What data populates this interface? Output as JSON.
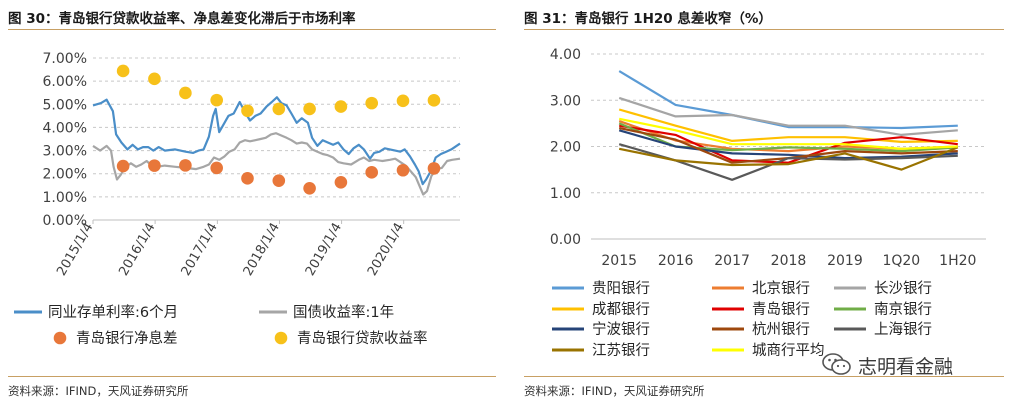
{
  "left": {
    "title": "图 30：青岛银行贷款收益率、净息差变化滞后于市场利率",
    "source": "资料来源：IFIND，天风证券研究所"
  },
  "right": {
    "title": "图 31：青岛银行 1H20 息差收窄（%）",
    "source": "资料来源：IFIND，天风证券研究所"
  },
  "watermark": {
    "text": "志明看金融",
    "icon": "wechat-icon"
  },
  "chart_data": [
    {
      "type": "line",
      "x_ticks": [
        "2015/1/4",
        "2016/1/4",
        "2017/1/4",
        "2018/1/4",
        "2019/1/4",
        "2020/1/4"
      ],
      "x_range": [
        "2015/1/4",
        "2020/11/30"
      ],
      "y_ticks": [
        "0.00%",
        "1.00%",
        "2.00%",
        "3.00%",
        "4.00%",
        "5.00%",
        "6.00%",
        "7.00%"
      ],
      "ylim": [
        0,
        7
      ],
      "grid": "horizontal-dashed",
      "legend_position": "bottom",
      "series": [
        {
          "name": "同业存单利率:6个月",
          "kind": "line",
          "color": "#4a8ec8",
          "points": [
            [
              "2015/1/4",
              4.95
            ],
            [
              "2015/2/20",
              5.05
            ],
            [
              "2015/3/25",
              5.2
            ],
            [
              "2015/5/1",
              4.7
            ],
            [
              "2015/5/20",
              3.7
            ],
            [
              "2015/6/20",
              3.35
            ],
            [
              "2015/7/25",
              3.05
            ],
            [
              "2015/8/25",
              3.25
            ],
            [
              "2015/9/25",
              3.05
            ],
            [
              "2015/10/25",
              3.15
            ],
            [
              "2015/11/25",
              3.15
            ],
            [
              "2015/12/25",
              3.0
            ],
            [
              "2016/1/25",
              3.15
            ],
            [
              "2016/3/1",
              3.0
            ],
            [
              "2016/5/1",
              3.05
            ],
            [
              "2016/7/1",
              2.95
            ],
            [
              "2016/8/15",
              2.9
            ],
            [
              "2016/9/15",
              3.0
            ],
            [
              "2016/10/15",
              3.05
            ],
            [
              "2016/11/15",
              3.6
            ],
            [
              "2016/12/10",
              4.5
            ],
            [
              "2016/12/25",
              4.8
            ],
            [
              "2017/1/15",
              3.8
            ],
            [
              "2017/2/15",
              4.2
            ],
            [
              "2017/3/10",
              4.5
            ],
            [
              "2017/4/10",
              4.6
            ],
            [
              "2017/5/15",
              5.1
            ],
            [
              "2017/6/20",
              4.6
            ],
            [
              "2017/7/15",
              4.3
            ],
            [
              "2017/8/15",
              4.5
            ],
            [
              "2017/9/15",
              4.6
            ],
            [
              "2017/10/20",
              4.9
            ],
            [
              "2017/11/20",
              5.1
            ],
            [
              "2017/12/20",
              5.3
            ],
            [
              "2018/1/15",
              5.05
            ],
            [
              "2018/2/15",
              4.95
            ],
            [
              "2018/3/15",
              4.6
            ],
            [
              "2018/4/15",
              4.2
            ],
            [
              "2018/5/15",
              4.4
            ],
            [
              "2018/6/20",
              4.2
            ],
            [
              "2018/7/15",
              3.55
            ],
            [
              "2018/8/15",
              3.2
            ],
            [
              "2018/9/15",
              3.45
            ],
            [
              "2018/10/15",
              3.35
            ],
            [
              "2018/11/15",
              3.25
            ],
            [
              "2018/12/15",
              3.35
            ],
            [
              "2019/1/15",
              3.05
            ],
            [
              "2019/2/15",
              2.85
            ],
            [
              "2019/3/15",
              3.1
            ],
            [
              "2019/4/15",
              3.25
            ],
            [
              "2019/5/15",
              3.05
            ],
            [
              "2019/6/20",
              2.65
            ],
            [
              "2019/7/15",
              2.9
            ],
            [
              "2019/8/15",
              2.95
            ],
            [
              "2019/9/15",
              3.1
            ],
            [
              "2019/10/15",
              3.05
            ],
            [
              "2019/11/15",
              3.0
            ],
            [
              "2019/12/15",
              2.95
            ],
            [
              "2020/1/10",
              3.05
            ],
            [
              "2020/2/10",
              2.75
            ],
            [
              "2020/3/10",
              2.4
            ],
            [
              "2020/4/1",
              2.1
            ],
            [
              "2020/4/25",
              1.55
            ],
            [
              "2020/5/15",
              1.75
            ],
            [
              "2020/6/10",
              2.1
            ],
            [
              "2020/7/10",
              2.7
            ],
            [
              "2020/8/10",
              2.85
            ],
            [
              "2020/9/10",
              2.95
            ],
            [
              "2020/10/10",
              3.05
            ],
            [
              "2020/11/30",
              3.3
            ]
          ]
        },
        {
          "name": "国债收益率:1年",
          "kind": "line",
          "color": "#a6a6a6",
          "points": [
            [
              "2015/1/4",
              3.2
            ],
            [
              "2015/2/15",
              3.0
            ],
            [
              "2015/3/25",
              3.2
            ],
            [
              "2015/4/20",
              3.0
            ],
            [
              "2015/5/5",
              2.3
            ],
            [
              "2015/5/25",
              1.75
            ],
            [
              "2015/6/15",
              1.95
            ],
            [
              "2015/7/15",
              2.3
            ],
            [
              "2015/8/15",
              2.45
            ],
            [
              "2015/9/15",
              2.3
            ],
            [
              "2015/10/15",
              2.4
            ],
            [
              "2015/11/15",
              2.55
            ],
            [
              "2015/12/15",
              2.35
            ],
            [
              "2016/1/15",
              2.3
            ],
            [
              "2016/3/1",
              2.35
            ],
            [
              "2016/5/1",
              2.3
            ],
            [
              "2016/7/1",
              2.25
            ],
            [
              "2016/9/1",
              2.2
            ],
            [
              "2016/10/15",
              2.3
            ],
            [
              "2016/11/15",
              2.4
            ],
            [
              "2016/12/15",
              2.7
            ],
            [
              "2017/1/15",
              2.6
            ],
            [
              "2017/2/15",
              2.75
            ],
            [
              "2017/3/15",
              2.95
            ],
            [
              "2017/4/15",
              3.05
            ],
            [
              "2017/5/15",
              3.35
            ],
            [
              "2017/6/15",
              3.45
            ],
            [
              "2017/7/15",
              3.4
            ],
            [
              "2017/8/15",
              3.45
            ],
            [
              "2017/9/15",
              3.5
            ],
            [
              "2017/10/15",
              3.55
            ],
            [
              "2017/11/15",
              3.7
            ],
            [
              "2017/12/15",
              3.75
            ],
            [
              "2018/1/15",
              3.65
            ],
            [
              "2018/2/15",
              3.55
            ],
            [
              "2018/3/15",
              3.45
            ],
            [
              "2018/4/15",
              3.3
            ],
            [
              "2018/5/15",
              3.35
            ],
            [
              "2018/6/15",
              3.3
            ],
            [
              "2018/7/15",
              3.05
            ],
            [
              "2018/8/15",
              2.95
            ],
            [
              "2018/9/15",
              2.85
            ],
            [
              "2018/10/15",
              2.8
            ],
            [
              "2018/11/15",
              2.7
            ],
            [
              "2018/12/15",
              2.5
            ],
            [
              "2019/1/15",
              2.45
            ],
            [
              "2019/3/1",
              2.4
            ],
            [
              "2019/4/15",
              2.6
            ],
            [
              "2019/5/15",
              2.7
            ],
            [
              "2019/6/15",
              2.55
            ],
            [
              "2019/7/15",
              2.6
            ],
            [
              "2019/9/1",
              2.55
            ],
            [
              "2019/10/15",
              2.6
            ],
            [
              "2019/11/15",
              2.65
            ],
            [
              "2019/12/15",
              2.5
            ],
            [
              "2020/1/15",
              2.35
            ],
            [
              "2020/2/15",
              2.1
            ],
            [
              "2020/3/15",
              1.85
            ],
            [
              "2020/4/10",
              1.4
            ],
            [
              "2020/4/28",
              1.1
            ],
            [
              "2020/5/20",
              1.25
            ],
            [
              "2020/6/15",
              1.9
            ],
            [
              "2020/7/15",
              2.2
            ],
            [
              "2020/8/15",
              2.25
            ],
            [
              "2020/9/15",
              2.55
            ],
            [
              "2020/10/15",
              2.6
            ],
            [
              "2020/11/30",
              2.65
            ]
          ]
        },
        {
          "name": "青岛银行净息差",
          "kind": "dot",
          "color": "#e8773a",
          "points": [
            [
              "2015/6/30",
              2.33
            ],
            [
              "2015/12/31",
              2.35
            ],
            [
              "2016/6/30",
              2.36
            ],
            [
              "2016/12/31",
              2.25
            ],
            [
              "2017/6/30",
              1.8
            ],
            [
              "2017/12/31",
              1.7
            ],
            [
              "2018/6/30",
              1.37
            ],
            [
              "2018/12/31",
              1.63
            ],
            [
              "2019/6/30",
              2.06
            ],
            [
              "2019/12/31",
              2.15
            ],
            [
              "2020/6/30",
              2.23
            ]
          ]
        },
        {
          "name": "青岛银行贷款收益率",
          "kind": "dot",
          "color": "#f7c11a",
          "points": [
            [
              "2015/6/30",
              6.44
            ],
            [
              "2015/12/31",
              6.1
            ],
            [
              "2016/6/30",
              5.49
            ],
            [
              "2016/12/31",
              5.18
            ],
            [
              "2017/6/30",
              4.72
            ],
            [
              "2017/12/31",
              4.8
            ],
            [
              "2018/6/30",
              4.8
            ],
            [
              "2018/12/31",
              4.9
            ],
            [
              "2019/6/30",
              5.05
            ],
            [
              "2019/12/31",
              5.15
            ],
            [
              "2020/6/30",
              5.17
            ]
          ]
        }
      ]
    },
    {
      "type": "line",
      "categories": [
        "2015",
        "2016",
        "2017",
        "2018",
        "2019",
        "1Q20",
        "1H20"
      ],
      "y_ticks": [
        "0.00",
        "1.00",
        "2.00",
        "3.00",
        "4.00"
      ],
      "ylim": [
        0,
        4
      ],
      "grid": "horizontal-dashed",
      "legend_position": "bottom",
      "series": [
        {
          "name": "贵阳银行",
          "color": "#5b9bd5",
          "values": [
            3.63,
            2.9,
            2.68,
            2.42,
            2.42,
            2.4,
            2.45
          ]
        },
        {
          "name": "北京银行",
          "color": "#ed7d31",
          "values": [
            2.55,
            2.13,
            1.95,
            1.9,
            2.0,
            1.95,
            2.0
          ]
        },
        {
          "name": "长沙银行",
          "color": "#a5a5a5",
          "values": [
            3.05,
            2.65,
            2.68,
            2.45,
            2.45,
            2.25,
            2.35
          ]
        },
        {
          "name": "成都银行",
          "color": "#ffc000",
          "values": [
            2.8,
            2.45,
            2.12,
            2.2,
            2.2,
            2.1,
            2.12
          ]
        },
        {
          "name": "青岛银行",
          "color": "#e00000",
          "values": [
            2.45,
            2.25,
            1.7,
            1.65,
            2.08,
            2.2,
            2.05
          ]
        },
        {
          "name": "南京银行",
          "color": "#70ad47",
          "values": [
            2.5,
            2.0,
            1.92,
            1.98,
            1.95,
            1.9,
            1.98
          ]
        },
        {
          "name": "宁波银行",
          "color": "#264478",
          "values": [
            2.35,
            2.0,
            1.85,
            1.82,
            1.75,
            1.78,
            1.85
          ]
        },
        {
          "name": "杭州银行",
          "color": "#9e480e",
          "values": [
            2.4,
            2.15,
            1.65,
            1.75,
            1.9,
            1.85,
            1.9
          ]
        },
        {
          "name": "上海银行",
          "color": "#595959",
          "values": [
            2.05,
            1.7,
            1.28,
            1.75,
            1.72,
            1.75,
            1.8
          ]
        },
        {
          "name": "江苏银行",
          "color": "#997300",
          "values": [
            1.95,
            1.7,
            1.6,
            1.62,
            1.85,
            1.5,
            1.98
          ]
        },
        {
          "name": "城商行平均",
          "color": "#ffff00",
          "values": [
            2.6,
            2.35,
            2.05,
            2.05,
            2.05,
            1.95,
            2.0
          ]
        }
      ]
    }
  ]
}
